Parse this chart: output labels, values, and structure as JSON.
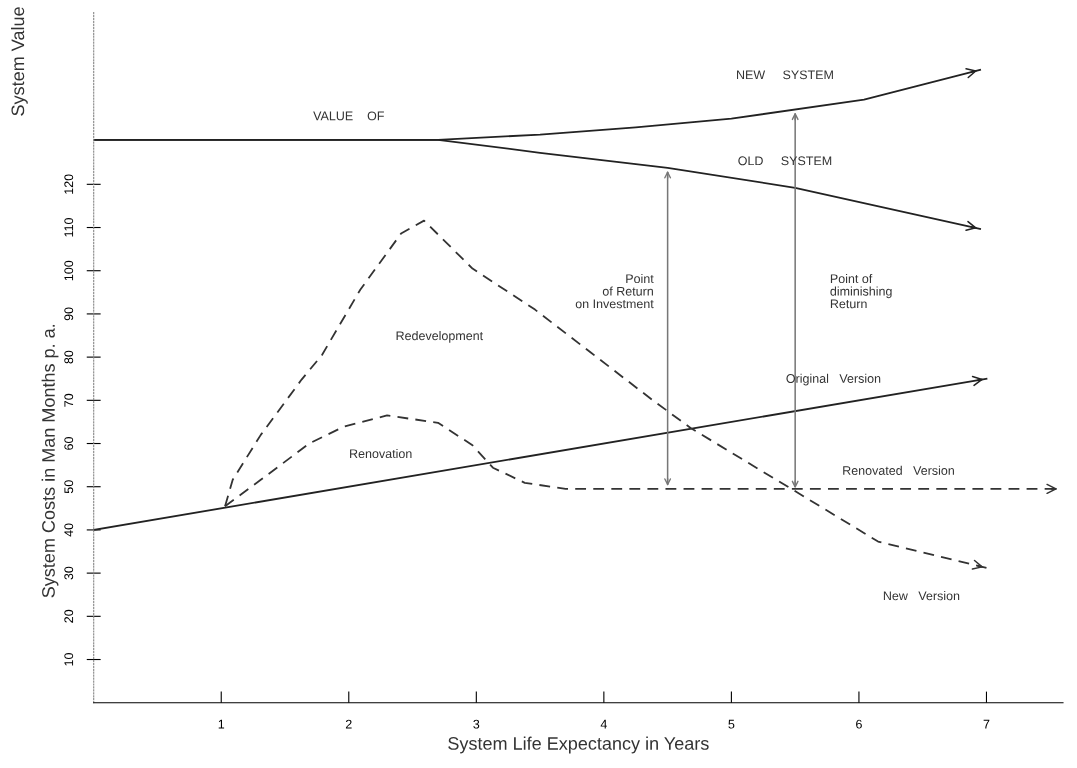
{
  "chart_data": {
    "type": "line",
    "xlabel": "System Life Expectancy in Years",
    "ylabel": "System Costs in Man Months p. a.",
    "xlim": [
      0,
      7.6
    ],
    "xticks": [
      1,
      2,
      3,
      4,
      5,
      6,
      7
    ],
    "ylim": [
      0,
      160
    ],
    "yticks": [
      10,
      20,
      30,
      40,
      50,
      60,
      70,
      80,
      90,
      100,
      110,
      120
    ],
    "grid": false,
    "legend": false,
    "marker": "none",
    "series": [
      {
        "color": "#222222",
        "line_style": "solid",
        "x": [
          0,
          7
        ],
        "values": [
          40,
          75
        ]
      },
      {
        "color": "#222222",
        "line_style": "solid",
        "x": [
          0,
          2.7,
          3.5,
          4.25,
          5,
          6.04,
          6.95
        ],
        "values": [
          130.3,
          130.3,
          131.5,
          133.2,
          135.2,
          139.6,
          146.5
        ]
      },
      {
        "color": "#222222",
        "line_style": "solid",
        "x": [
          0,
          2.7,
          3.5,
          4.5,
          5.5,
          6.95
        ],
        "values": [
          130.3,
          130.3,
          127.3,
          123.8,
          119.2,
          109.7
        ]
      },
      {
        "color": "#333333",
        "line_style": "dashed",
        "x": [
          1.03,
          1.09,
          1.31,
          1.63,
          1.79,
          2.09,
          2.41,
          2.59,
          2.97,
          3.46,
          3.9,
          4.38,
          4.68,
          5.47,
          6.15,
          7.0
        ],
        "values": [
          45.5,
          51.6,
          62,
          74.8,
          80.5,
          95.6,
          108.6,
          111.6,
          100.5,
          91,
          81,
          70.1,
          63.6,
          49.5,
          37.3,
          31.2
        ]
      },
      {
        "color": "#333333",
        "line_style": "dashed",
        "x": [
          1.03,
          1.31,
          1.69,
          1.96,
          2.3,
          2.7,
          2.97,
          3.13,
          3.38,
          3.7,
          7.58
        ],
        "values": [
          45.5,
          51.6,
          60,
          63.9,
          66.5,
          64.8,
          59.6,
          54.4,
          50.9,
          49.5,
          49.5
        ]
      }
    ],
    "ref_lines": [
      {
        "axis": "x",
        "value": 4.5,
        "label": "Point\nof Return\non Investment",
        "color": "#777777"
      },
      {
        "axis": "x",
        "value": 5.5,
        "label": "Point of\ndiminishing\nReturn",
        "color": "#777777"
      }
    ],
    "annotations": [
      "System Value",
      "VALUE    OF",
      "NEW     SYSTEM",
      "OLD     SYSTEM",
      "Redevelopment",
      "Renovation",
      "Original   Version",
      "Renovated   Version",
      "New   Version"
    ]
  }
}
